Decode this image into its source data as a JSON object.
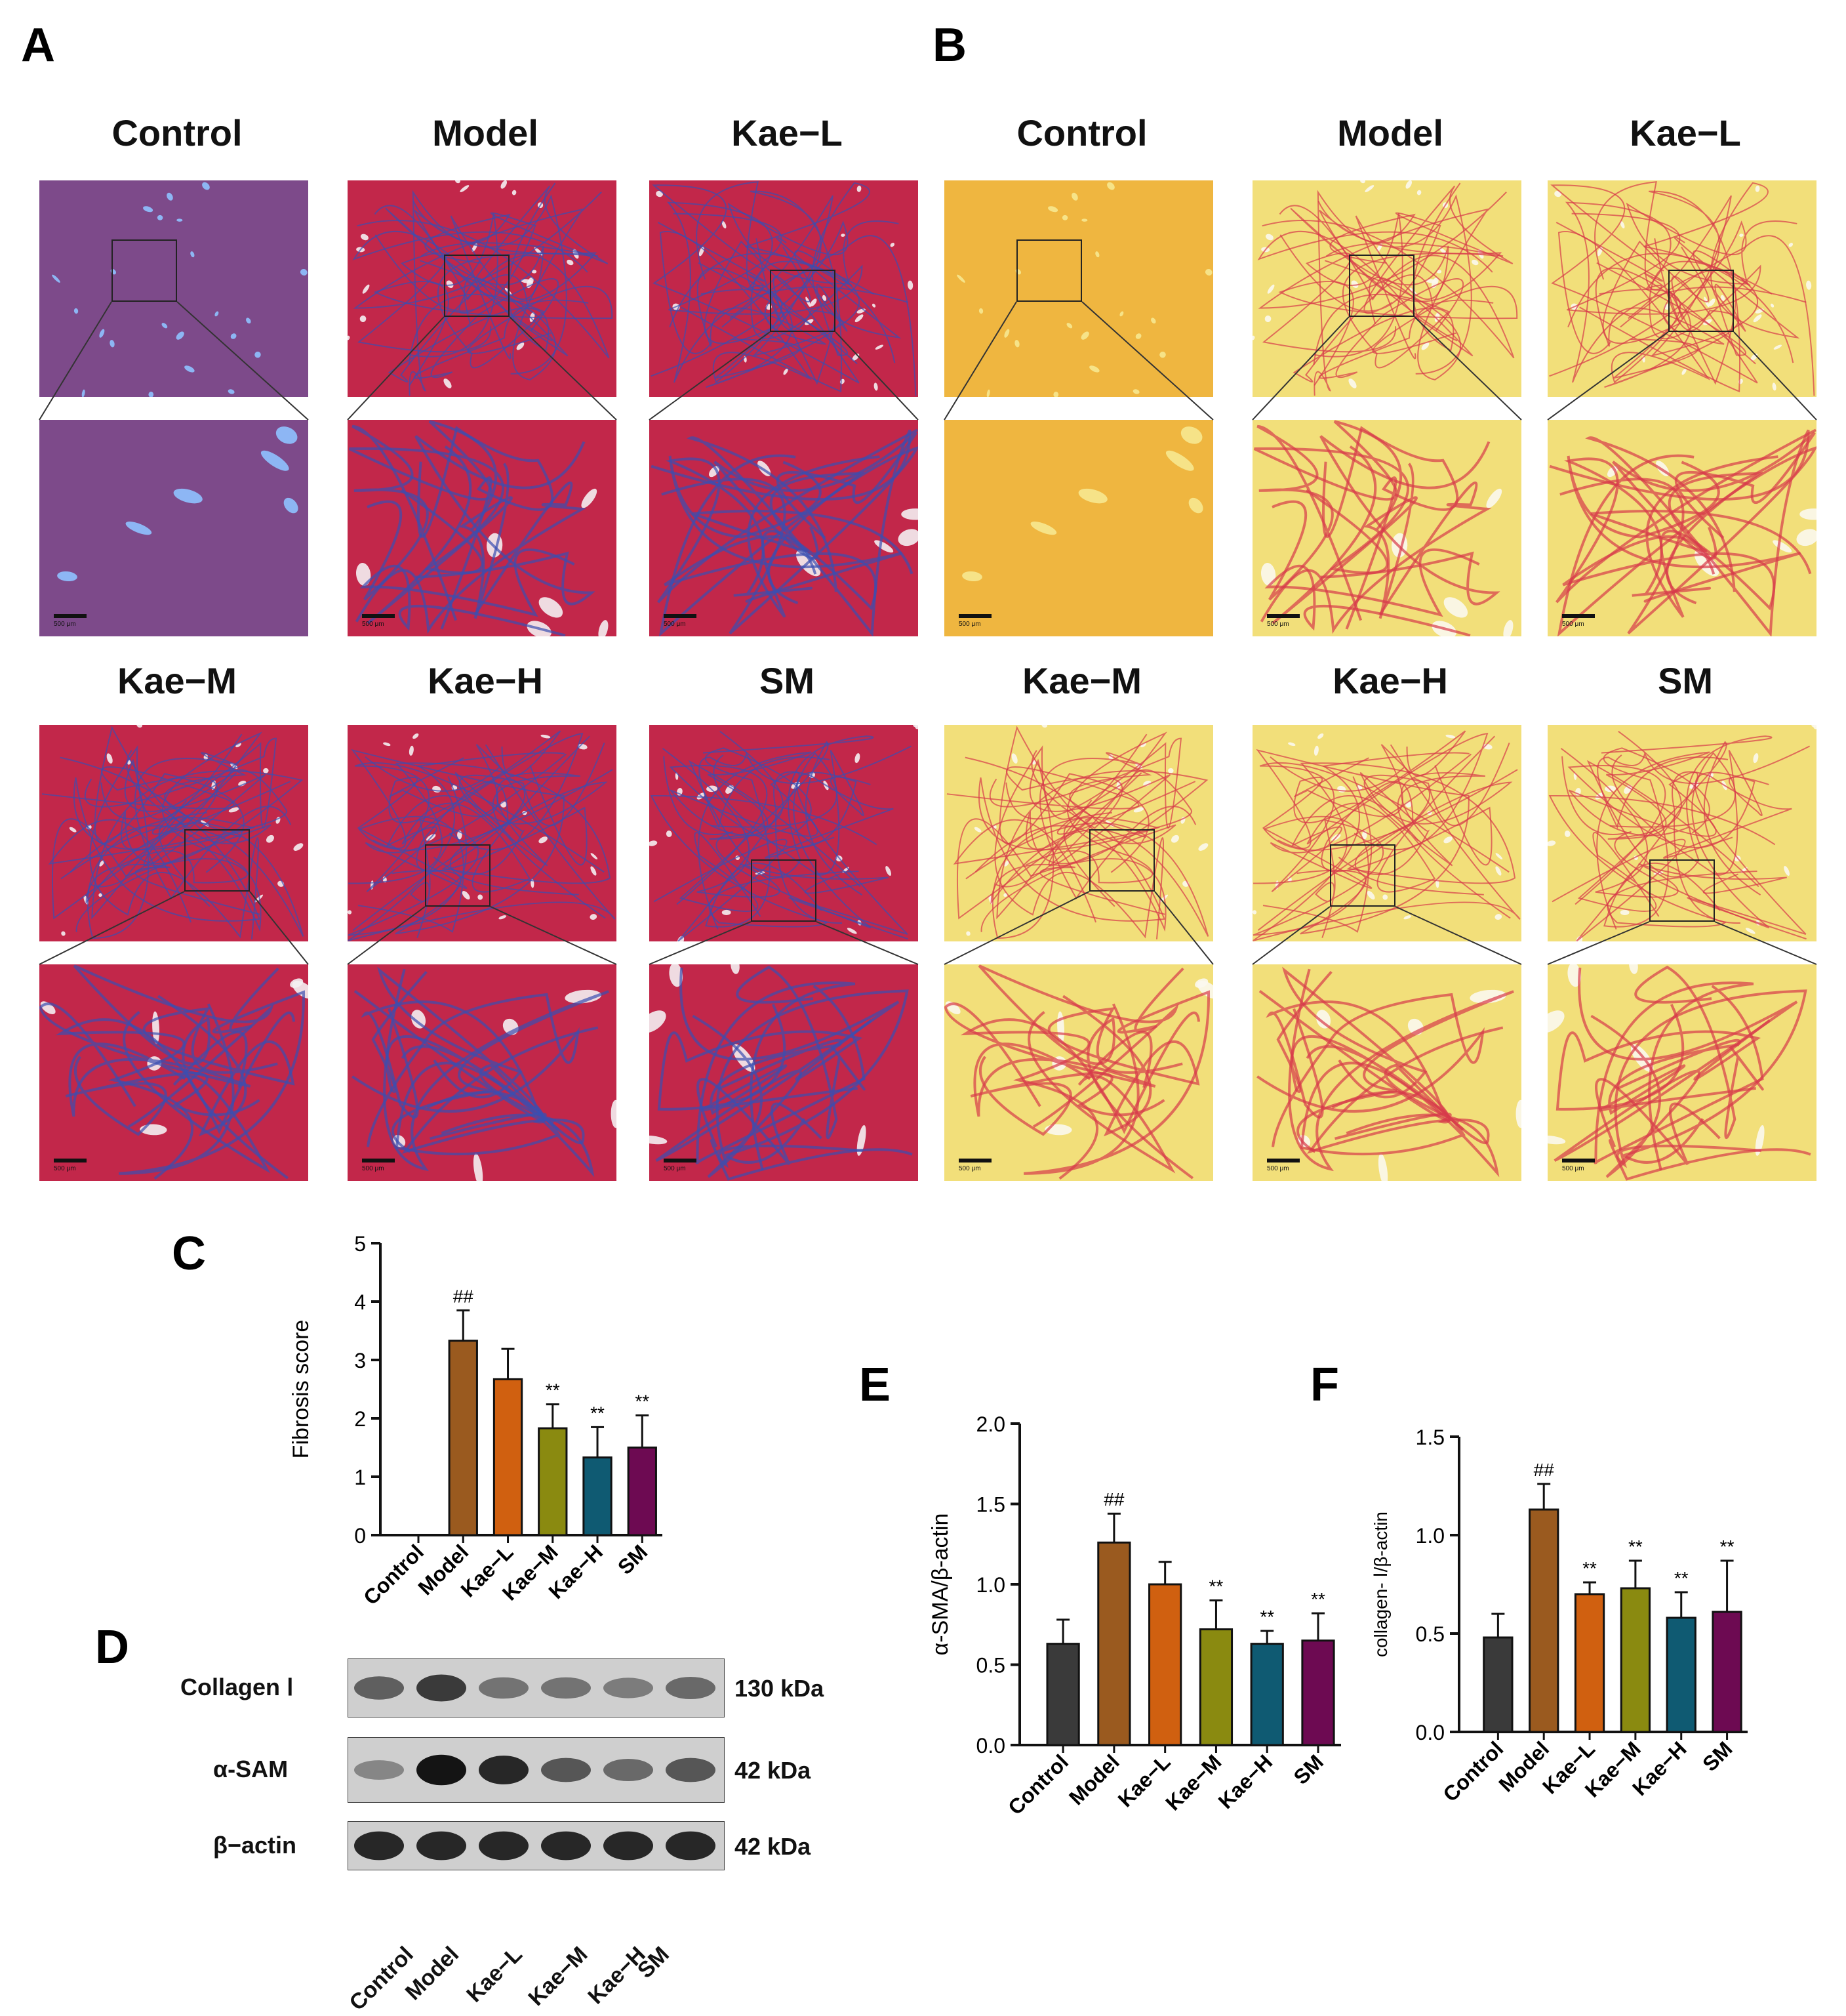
{
  "figure": {
    "panels": {
      "A": "A",
      "B": "B",
      "C": "C",
      "D": "D",
      "E": "E",
      "F": "F"
    },
    "histology_groups": [
      "Control",
      "Model",
      "Kae−L",
      "Kae−M",
      "Kae−H",
      "SM"
    ],
    "scale_label": "500 μm",
    "colors": {
      "masson_control": "#7d4a8a",
      "masson_red": "#c2274a",
      "masson_blue": "#3b4fb0",
      "siriusred_bg": "#f2df7a",
      "siriusred_fiber": "#d73a4a",
      "control_bar": "#3a3a3a",
      "model_bar": "#9a5a1f",
      "kael_bar": "#d06010",
      "kaem_bar": "#8a8a10",
      "kaeh_bar": "#0f5a72",
      "sm_bar": "#6d0a52"
    }
  },
  "western_blot": {
    "rows": [
      {
        "label": "Collagen Ⅰ",
        "kda": "130 kDa"
      },
      {
        "label": "α-SAM",
        "kda": "42 kDa"
      },
      {
        "label": "β−actin",
        "kda": "42 kDa"
      }
    ],
    "lanes": [
      "Control",
      "Model",
      "Kae−L",
      "Kae−M",
      "Kae−H",
      "SM"
    ]
  },
  "chart_data": [
    {
      "panel": "C",
      "type": "bar",
      "ylabel": "Fibrosis score",
      "ylim": [
        0,
        5
      ],
      "yticks": [
        "0",
        "1",
        "2",
        "3",
        "4",
        "5"
      ],
      "categories": [
        "Control",
        "Model",
        "Kae−L",
        "Kae−M",
        "Kae−H",
        "SM"
      ],
      "values": [
        0,
        3.33,
        2.67,
        1.83,
        1.33,
        1.5
      ],
      "errors": [
        0,
        0.52,
        0.52,
        0.41,
        0.52,
        0.55
      ],
      "annotations": [
        "",
        "##",
        "",
        "**",
        "**",
        "**"
      ]
    },
    {
      "panel": "E",
      "type": "bar",
      "ylabel": "α-SMA/β-actin",
      "ylim": [
        0,
        2.0
      ],
      "yticks": [
        "0.0",
        "0.5",
        "1.0",
        "1.5",
        "2.0"
      ],
      "categories": [
        "Control",
        "Model",
        "Kae−L",
        "Kae−M",
        "Kae−H",
        "SM"
      ],
      "values": [
        0.63,
        1.26,
        1.0,
        0.72,
        0.63,
        0.65
      ],
      "errors": [
        0.15,
        0.18,
        0.14,
        0.18,
        0.08,
        0.17
      ],
      "annotations": [
        "",
        "##",
        "",
        "**",
        "**",
        "**"
      ]
    },
    {
      "panel": "F",
      "type": "bar",
      "ylabel": "collagen- Ⅰ/β-actin",
      "ylim": [
        0,
        1.5
      ],
      "yticks": [
        "0.0",
        "0.5",
        "1.0",
        "1.5"
      ],
      "categories": [
        "Control",
        "Model",
        "Kae−L",
        "Kae−M",
        "Kae−H",
        "SM"
      ],
      "values": [
        0.48,
        1.13,
        0.7,
        0.73,
        0.58,
        0.61
      ],
      "errors": [
        0.12,
        0.13,
        0.06,
        0.14,
        0.13,
        0.26
      ],
      "annotations": [
        "",
        "##",
        "**",
        "**",
        "**",
        "**"
      ]
    }
  ]
}
